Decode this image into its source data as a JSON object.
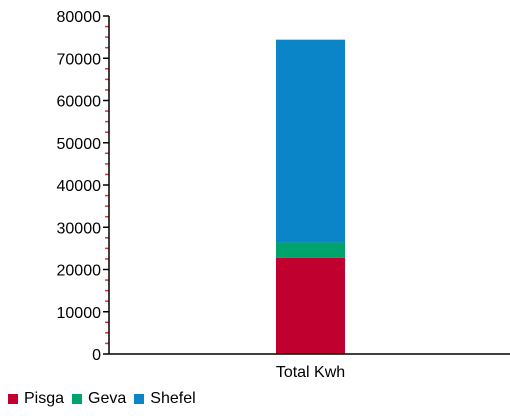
{
  "chart_data": {
    "type": "bar",
    "stacked": true,
    "categories": [
      "Total Kwh"
    ],
    "series": [
      {
        "name": "Pisga",
        "values": [
          22800
        ],
        "color": "#c0002f"
      },
      {
        "name": "Geva",
        "values": [
          3600
        ],
        "color": "#00a36c"
      },
      {
        "name": "Shefel",
        "values": [
          48000
        ],
        "color": "#0a86c8"
      }
    ],
    "ylim": [
      0,
      80000
    ],
    "yticks": [
      0,
      10000,
      20000,
      30000,
      40000,
      50000,
      60000,
      70000,
      80000
    ],
    "title": "",
    "xlabel": "",
    "ylabel": "",
    "grid": false,
    "legend_position": "bottom-left",
    "axis_color": "#000000",
    "minor_tick_color": "#e03030"
  }
}
